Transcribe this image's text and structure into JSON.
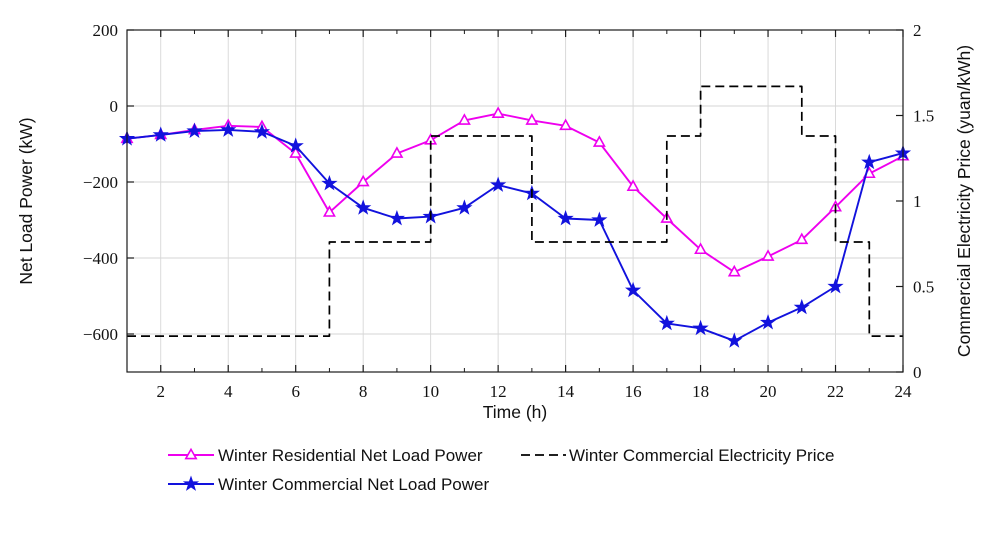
{
  "figure": {
    "background": "#ffffff",
    "axis_color": "#1a1a1a",
    "grid_color": "#d6d6d6"
  },
  "chart_data": {
    "type": "line",
    "title": "",
    "xlabel": "Time (h)",
    "ylabel_left": "Net Load Power (kW)",
    "ylabel_right": "Commercial Electricity Price (yuan/kWh)",
    "x": [
      1,
      2,
      3,
      4,
      5,
      6,
      7,
      8,
      9,
      10,
      11,
      12,
      13,
      14,
      15,
      16,
      17,
      18,
      19,
      20,
      21,
      22,
      23,
      24
    ],
    "xlim": [
      1,
      24
    ],
    "ylim_left": [
      -700,
      200
    ],
    "ylim_right": [
      0,
      2
    ],
    "x_ticks": [
      2,
      4,
      6,
      8,
      10,
      12,
      14,
      16,
      18,
      20,
      22,
      24
    ],
    "y_ticks_left": [
      200,
      0,
      -200,
      -400,
      -600
    ],
    "y_ticks_right": [
      0,
      0.5,
      1,
      1.5,
      2
    ],
    "grid": true,
    "legend_position": "below-center",
    "series": [
      {
        "name": "Winter Residential Net Load Power",
        "axis": "left",
        "color": "#ee00ee",
        "marker": "triangle",
        "line": "solid",
        "values": [
          -86,
          -76,
          -63,
          -52,
          -55,
          -125,
          -280,
          -200,
          -125,
          -90,
          -38,
          -20,
          -38,
          -52,
          -96,
          -212,
          -296,
          -378,
          -437,
          -396,
          -352,
          -266,
          -178,
          -132
        ]
      },
      {
        "name": "Winter Commercial Net Load Power",
        "axis": "left",
        "color": "#1212dd",
        "marker": "star",
        "line": "solid",
        "values": [
          -86,
          -76,
          -66,
          -63,
          -68,
          -105,
          -204,
          -268,
          -296,
          -291,
          -268,
          -208,
          -230,
          -296,
          -300,
          -485,
          -572,
          -585,
          -618,
          -570,
          -530,
          -475,
          -148,
          -124
        ]
      },
      {
        "name": "Winter Commercial Electricity Price",
        "axis": "right",
        "color": "#000000",
        "marker": "none",
        "line": "dashed",
        "step": true,
        "values": [
          0.21,
          0.21,
          0.21,
          0.21,
          0.21,
          0.21,
          0.76,
          0.76,
          0.76,
          1.38,
          1.38,
          1.38,
          0.76,
          0.76,
          0.76,
          0.76,
          1.38,
          1.67,
          1.67,
          1.67,
          1.38,
          0.76,
          0.21,
          0.21
        ]
      }
    ]
  }
}
